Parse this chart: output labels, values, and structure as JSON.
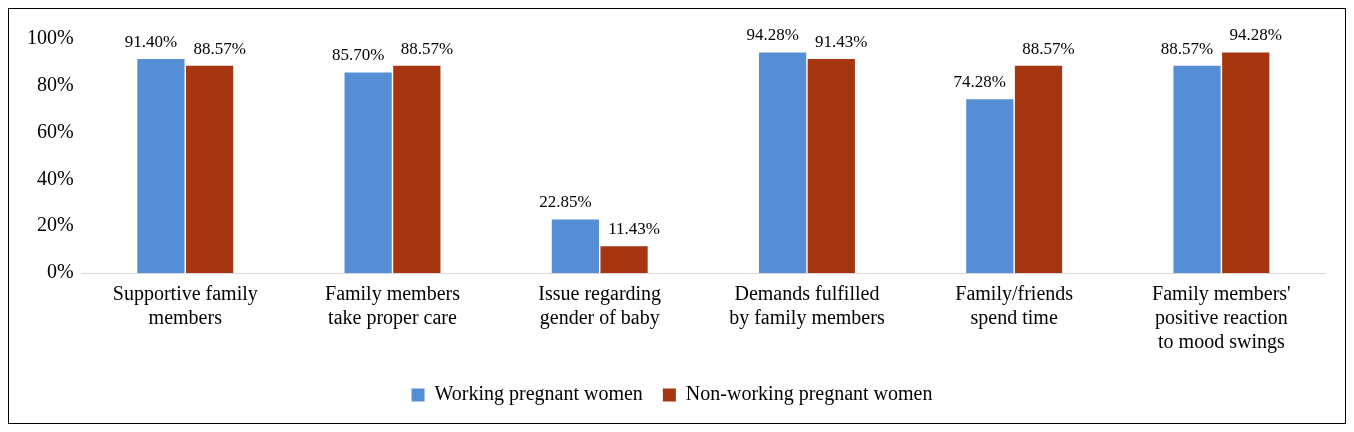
{
  "chart_data": {
    "type": "bar",
    "categories": [
      "Supportive family members",
      "Family members take proper care",
      "Issue regarding gender of baby",
      "Demands fulfilled by family members",
      "Family/friends spend time",
      "Family members' positive reaction to mood swings"
    ],
    "series": [
      {
        "name": "Working pregnant women",
        "color": "#558ed5",
        "values": [
          91.4,
          85.7,
          22.85,
          94.28,
          74.28,
          88.57
        ],
        "value_labels": [
          "91.40%",
          "85.70%",
          "22.85%",
          "94.28%",
          "74.28%",
          "88.57%"
        ]
      },
      {
        "name": "Non-working pregnant women",
        "color": "#a5360f",
        "values": [
          88.57,
          88.57,
          11.43,
          91.43,
          88.57,
          94.28
        ],
        "value_labels": [
          "88.57%",
          "88.57%",
          "11.43%",
          "91.43%",
          "88.57%",
          "94.28%"
        ]
      }
    ],
    "ylim": [
      0,
      100
    ],
    "yticks": [
      {
        "value": 0,
        "label": "0%"
      },
      {
        "value": 20,
        "label": "20%"
      },
      {
        "value": 40,
        "label": "40%"
      },
      {
        "value": 60,
        "label": "60%"
      },
      {
        "value": 80,
        "label": "80%"
      },
      {
        "value": 100,
        "label": "100%"
      }
    ],
    "grid": false,
    "legend": "bottom"
  }
}
